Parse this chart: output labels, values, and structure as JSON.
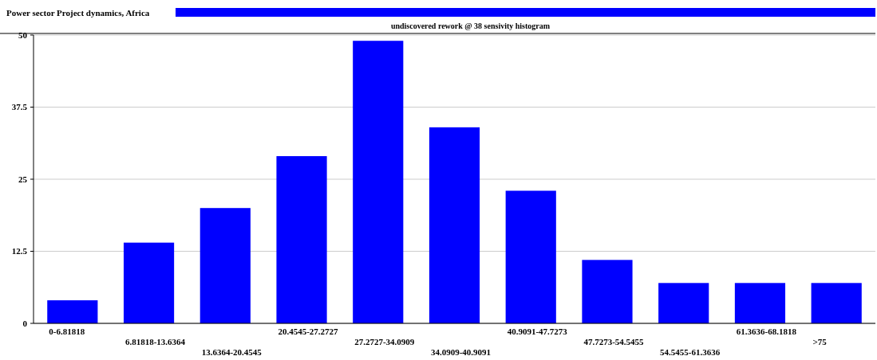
{
  "chart_data": {
    "type": "bar",
    "title": "Power sector Project dynamics, Africa",
    "subtitle": "undiscovered rework @ 38 sensivity histogram",
    "categories": [
      "0-6.81818",
      "6.81818-13.6364",
      "13.6364-20.4545",
      "20.4545-27.2727",
      "27.2727-34.0909",
      "34.0909-40.9091",
      "40.9091-47.7273",
      "47.7273-54.5455",
      "54.5455-61.3636",
      "61.3636-68.1818",
      ">75"
    ],
    "values": [
      4,
      14,
      20,
      29,
      49,
      34,
      23,
      11,
      7,
      7,
      7
    ],
    "color": "#0000ff",
    "ylim": [
      0,
      50
    ],
    "yticks": [
      0,
      12.5,
      25,
      37.5,
      50
    ],
    "grid": "y"
  }
}
